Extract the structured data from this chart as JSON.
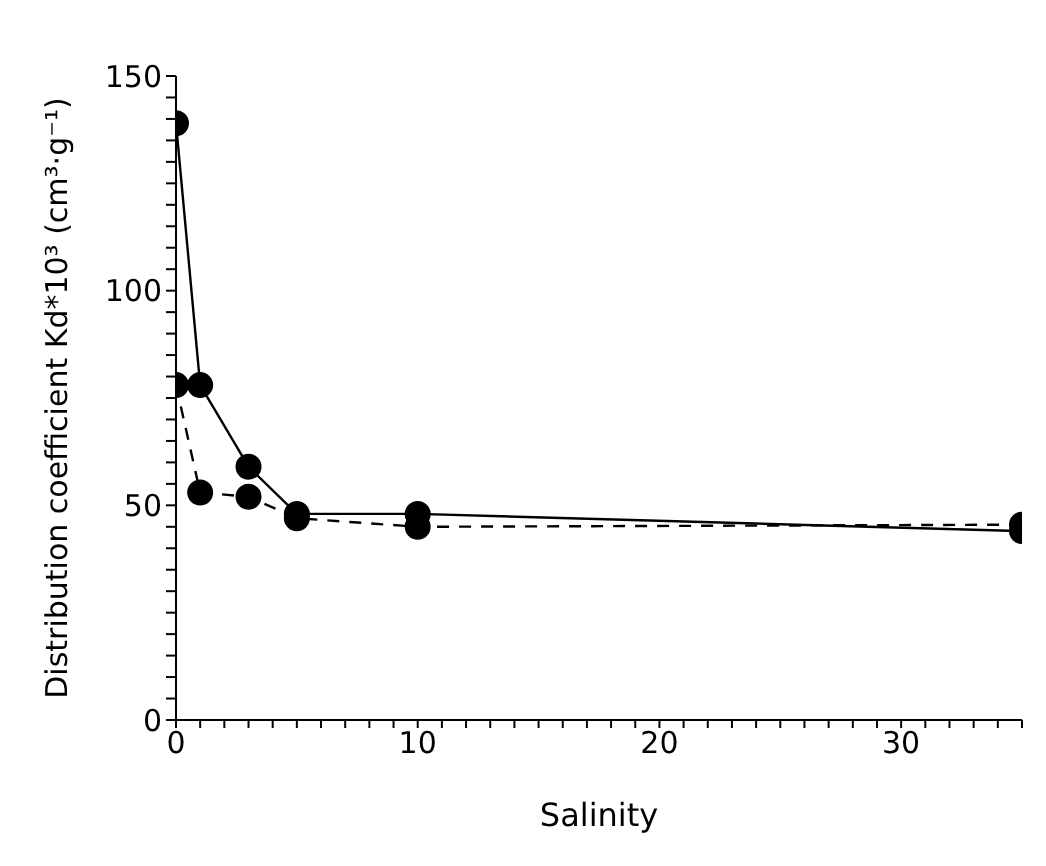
{
  "chart_data": {
    "type": "line",
    "xlabel": "Salinity",
    "ylabel": "Distribution coefficient  Kd*10³ (cm³·g⁻¹)",
    "x": [
      0,
      1,
      3,
      5,
      10,
      35
    ],
    "series": [
      {
        "color": "#000000",
        "line_style": "solid",
        "values": [
          139,
          78,
          59,
          48,
          48,
          44
        ]
      },
      {
        "color": "#000000",
        "line_style": "dashed",
        "values": [
          78,
          53,
          52,
          47,
          45,
          45.5
        ]
      }
    ],
    "marker": "circle",
    "grid": false,
    "legend": false,
    "xlim": [
      0,
      35
    ],
    "xticks": [
      0,
      {
        "value": 1,
        "label": null
      },
      {
        "value": 2,
        "label": null
      },
      {
        "value": 3,
        "label": null
      },
      {
        "value": 4,
        "label": null
      },
      {
        "value": 5,
        "label": null
      },
      {
        "value": 6,
        "label": null
      },
      {
        "value": 7,
        "label": null
      },
      {
        "value": 8,
        "label": null
      },
      {
        "value": 9,
        "label": null
      },
      10,
      {
        "value": 11,
        "label": null
      },
      {
        "value": 12,
        "label": null
      },
      {
        "value": 13,
        "label": null
      },
      {
        "value": 14,
        "label": null
      },
      {
        "value": 15,
        "label": null
      },
      {
        "value": 16,
        "label": null
      },
      {
        "value": 17,
        "label": null
      },
      {
        "value": 18,
        "label": null
      },
      {
        "value": 19,
        "label": null
      },
      20,
      {
        "value": 21,
        "label": null
      },
      {
        "value": 22,
        "label": null
      },
      {
        "value": 23,
        "label": null
      },
      {
        "value": 24,
        "label": null
      },
      {
        "value": 25,
        "label": null
      },
      {
        "value": 26,
        "label": null
      },
      {
        "value": 27,
        "label": null
      },
      {
        "value": 28,
        "label": null
      },
      {
        "value": 29,
        "label": null
      },
      30,
      {
        "value": 31,
        "label": null
      },
      {
        "value": 32,
        "label": null
      },
      {
        "value": 33,
        "label": null
      },
      {
        "value": 34,
        "label": null
      },
      {
        "value": 35,
        "label": null
      }
    ],
    "ylim": [
      0,
      150
    ],
    "yticks": [
      0,
      {
        "value": 5,
        "label": null
      },
      {
        "value": 10,
        "label": null
      },
      {
        "value": 15,
        "label": null
      },
      {
        "value": 20,
        "label": null
      },
      {
        "value": 25,
        "label": null
      },
      {
        "value": 30,
        "label": null
      },
      {
        "value": 35,
        "label": null
      },
      {
        "value": 40,
        "label": null
      },
      {
        "value": 45,
        "label": null
      },
      50,
      {
        "value": 55,
        "label": null
      },
      {
        "value": 60,
        "label": null
      },
      {
        "value": 65,
        "label": null
      },
      {
        "value": 70,
        "label": null
      },
      {
        "value": 75,
        "label": null
      },
      {
        "value": 80,
        "label": null
      },
      {
        "value": 85,
        "label": null
      },
      {
        "value": 90,
        "label": null
      },
      {
        "value": 95,
        "label": null
      },
      100,
      {
        "value": 105,
        "label": null
      },
      {
        "value": 110,
        "label": null
      },
      {
        "value": 115,
        "label": null
      },
      {
        "value": 120,
        "label": null
      },
      {
        "value": 125,
        "label": null
      },
      {
        "value": 130,
        "label": null
      },
      {
        "value": 135,
        "label": null
      },
      {
        "value": 140,
        "label": null
      },
      {
        "value": 145,
        "label": null
      },
      150
    ]
  }
}
